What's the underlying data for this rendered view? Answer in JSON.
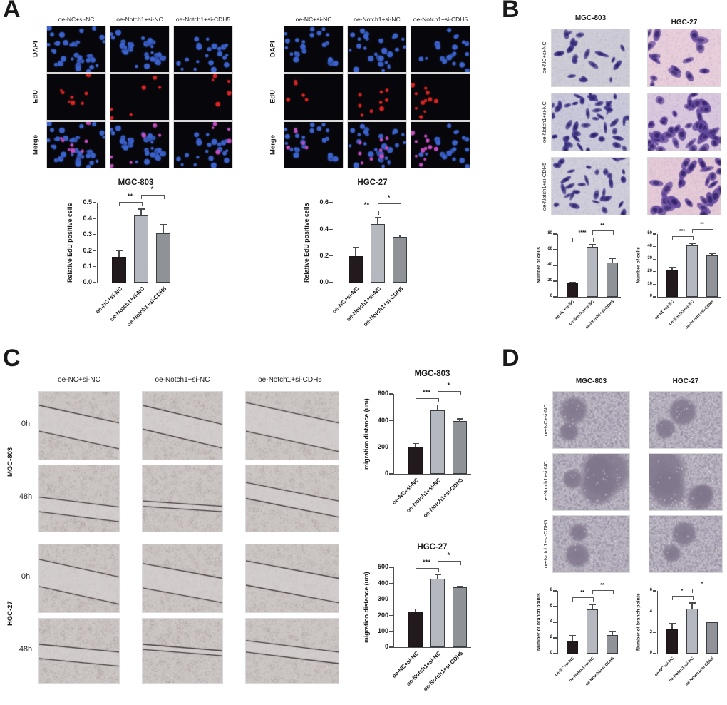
{
  "panel_labels": {
    "a": "A",
    "b": "B",
    "c": "C",
    "d": "D"
  },
  "conditions": [
    "oe-NC+si-NC",
    "oe-Notch1+si-NC",
    "oe-Notch1+si-CDH5"
  ],
  "cell_lines": [
    "MGC-803",
    "HGC-27"
  ],
  "stain_labels": [
    "DAPI",
    "EdU",
    "Merge"
  ],
  "time_labels": [
    "0h",
    "48h"
  ],
  "colors": {
    "bar_fills": [
      "#231a1d",
      "#b5b8be",
      "#8f9297"
    ],
    "axis": "#4a4d52",
    "dapi_blue": "#3c63cd",
    "edu_red": "#da2424",
    "merge_magenta": "#c24ec2"
  },
  "chart_data": [
    {
      "id": "A-MGC-803",
      "type": "bar",
      "title": "MGC-803",
      "ylabel": "Relative EdU positive cells",
      "categories": [
        "oe-NC+si-NC",
        "oe-Notch1+si-NC",
        "oe-Notch1+si-CDH5"
      ],
      "values": [
        0.16,
        0.42,
        0.31
      ],
      "errors": [
        0.04,
        0.04,
        0.055
      ],
      "ylim": [
        0,
        0.5
      ],
      "yticks": [
        0,
        0.1,
        0.2,
        0.3,
        0.4,
        0.5
      ],
      "ytick_labels": [
        "0.0",
        "0.1",
        "0.2",
        "0.3",
        "0.4",
        "0.5"
      ],
      "significance": [
        {
          "between": [
            0,
            1
          ],
          "label": "**"
        },
        {
          "between": [
            1,
            2
          ],
          "label": "*"
        }
      ]
    },
    {
      "id": "A-HGC-27",
      "type": "bar",
      "title": "HGC-27",
      "ylabel": "Relative EdU positive cells",
      "categories": [
        "oe-NC+si-NC",
        "oe-Notch1+si-NC",
        "oe-Notch1+si-CDH5"
      ],
      "values": [
        0.2,
        0.44,
        0.345
      ],
      "errors": [
        0.065,
        0.05,
        0.012
      ],
      "ylim": [
        0,
        0.6
      ],
      "yticks": [
        0,
        0.2,
        0.4,
        0.6
      ],
      "ytick_labels": [
        "0.0",
        "0.2",
        "0.4",
        "0.6"
      ],
      "significance": [
        {
          "between": [
            0,
            1
          ],
          "label": "**"
        },
        {
          "between": [
            1,
            2
          ],
          "label": "*"
        }
      ]
    },
    {
      "id": "B-MGC-803",
      "type": "bar",
      "title": "",
      "ylabel": "Number of cells",
      "categories": [
        "oe-NC+si-NC",
        "oe-Notch1+si-NC",
        "oe-Notch1+si-CDH5"
      ],
      "values": [
        17.5,
        64,
        44
      ],
      "errors": [
        1.5,
        2.5,
        5
      ],
      "ylim": [
        0,
        80
      ],
      "yticks": [
        0,
        20,
        40,
        60,
        80
      ],
      "ytick_labels": [
        "0",
        "20",
        "40",
        "60",
        "80"
      ],
      "significance": [
        {
          "between": [
            0,
            1
          ],
          "label": "****"
        },
        {
          "between": [
            1,
            2
          ],
          "label": "**"
        }
      ]
    },
    {
      "id": "B-HGC-27",
      "type": "bar",
      "title": "",
      "ylabel": "Number of cells",
      "categories": [
        "oe-NC+si-NC",
        "oe-Notch1+si-NC",
        "oe-Notch1+si-CDH5"
      ],
      "values": [
        21,
        41,
        33
      ],
      "errors": [
        2.5,
        1.5,
        1.5
      ],
      "ylim": [
        0,
        50
      ],
      "yticks": [
        0,
        10,
        20,
        30,
        40,
        50
      ],
      "ytick_labels": [
        "0",
        "10",
        "20",
        "30",
        "40",
        "50"
      ],
      "significance": [
        {
          "between": [
            0,
            1
          ],
          "label": "***"
        },
        {
          "between": [
            1,
            2
          ],
          "label": "**"
        }
      ]
    },
    {
      "id": "C-MGC-803",
      "type": "bar",
      "title": "MGC-803",
      "ylabel": "migration distance (um)",
      "categories": [
        "oe-NC+si-NC",
        "oe-Notch1+si-NC",
        "oe-Notch1+si-CDH5"
      ],
      "values": [
        205,
        478,
        398
      ],
      "errors": [
        22,
        38,
        15
      ],
      "ylim": [
        0,
        600
      ],
      "yticks": [
        0,
        200,
        400,
        600
      ],
      "ytick_labels": [
        "0",
        "200",
        "400",
        "600"
      ],
      "significance": [
        {
          "between": [
            0,
            1
          ],
          "label": "***"
        },
        {
          "between": [
            1,
            2
          ],
          "label": "*"
        }
      ]
    },
    {
      "id": "C-HGC-27",
      "type": "bar",
      "title": "HGC-27",
      "ylabel": "migration distance (um)",
      "categories": [
        "oe-NC+si-NC",
        "oe-Notch1+si-NC",
        "oe-Notch1+si-CDH5"
      ],
      "values": [
        222,
        428,
        373
      ],
      "errors": [
        18,
        25,
        8
      ],
      "ylim": [
        0,
        500
      ],
      "yticks": [
        0,
        100,
        200,
        300,
        400,
        500
      ],
      "ytick_labels": [
        "0",
        "100",
        "200",
        "300",
        "400",
        "500"
      ],
      "significance": [
        {
          "between": [
            0,
            1
          ],
          "label": "***"
        },
        {
          "between": [
            1,
            2
          ],
          "label": "*"
        }
      ]
    },
    {
      "id": "D-MGC-803",
      "type": "bar",
      "title": "",
      "ylabel": "Number of branch points",
      "categories": [
        "oe-NC+si-NC",
        "oe-Notch1+si-NC",
        "oe-Notch1+si-CDH5"
      ],
      "values": [
        1.65,
        5.65,
        2.35
      ],
      "errors": [
        0.65,
        0.6,
        0.55
      ],
      "ylim": [
        0,
        8
      ],
      "yticks": [
        0,
        2,
        4,
        6,
        8
      ],
      "ytick_labels": [
        "0",
        "2",
        "4",
        "6",
        "8"
      ],
      "significance": [
        {
          "between": [
            0,
            1
          ],
          "label": "**"
        },
        {
          "between": [
            1,
            2
          ],
          "label": "**"
        }
      ]
    },
    {
      "id": "D-HGC-27",
      "type": "bar",
      "title": "",
      "ylabel": "Number of branch points",
      "categories": [
        "oe-NC+si-NC",
        "oe-Notch1+si-NC",
        "oe-Notch1+si-CDH5"
      ],
      "values": [
        2.3,
        4.3,
        3.0
      ],
      "errors": [
        0.6,
        0.55,
        0.05
      ],
      "ylim": [
        0,
        6
      ],
      "yticks": [
        0,
        2,
        4,
        6
      ],
      "ytick_labels": [
        "0",
        "2",
        "4",
        "6"
      ],
      "significance": [
        {
          "between": [
            0,
            1
          ],
          "label": "*"
        },
        {
          "between": [
            1,
            2
          ],
          "label": "*"
        }
      ]
    }
  ]
}
